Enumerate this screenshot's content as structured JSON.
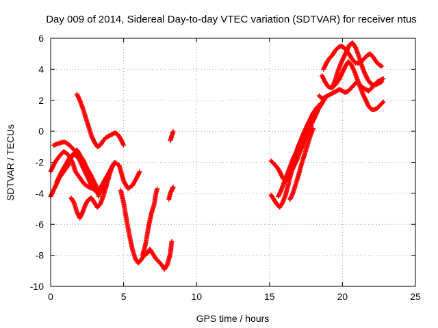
{
  "chart_data": {
    "type": "scatter",
    "title": "Day 009 of 2014, Sidereal Day-to-day VTEC variation (SDTVAR) for receiver ntus",
    "xlabel": "GPS time / hours",
    "ylabel": "SDTVAR / TECUs",
    "xlim": [
      0,
      25
    ],
    "ylim": [
      -10,
      6
    ],
    "xticks": [
      0,
      5,
      10,
      15,
      20,
      25
    ],
    "yticks": [
      -10,
      -8,
      -6,
      -4,
      -2,
      0,
      2,
      4,
      6
    ],
    "grid": true,
    "marker": "plus",
    "color": "#ff0000",
    "series": [
      {
        "x": [
          0.0,
          0.3,
          0.6,
          0.9,
          1.2,
          1.5,
          1.7,
          2.0,
          2.3,
          2.6,
          2.9,
          3.2,
          3.5,
          3.8,
          4.1,
          4.4,
          4.7,
          5.0,
          5.3,
          5.6,
          5.9,
          6.1
        ],
        "y": [
          -2.6,
          -2.0,
          -1.6,
          -1.3,
          -1.5,
          -2.0,
          -2.6,
          -3.0,
          -3.4,
          -3.6,
          -3.7,
          -3.8,
          -3.5,
          -3.0,
          -2.5,
          -2.0,
          -2.2,
          -3.2,
          -3.7,
          -3.5,
          -3.0,
          -2.6
        ]
      },
      {
        "x": [
          0.0,
          0.3,
          0.6,
          0.9,
          1.2,
          1.4,
          1.6,
          1.8,
          2.0
        ],
        "y": [
          -4.2,
          -3.6,
          -3.0,
          -2.6,
          -2.2,
          -1.7,
          -1.4,
          -1.2,
          -1.5
        ]
      },
      {
        "x": [
          0.2,
          0.5,
          0.8,
          1.0,
          1.3,
          1.6,
          1.9,
          2.2,
          2.5,
          2.8,
          3.1,
          3.3
        ],
        "y": [
          -0.9,
          -0.8,
          -0.7,
          -0.7,
          -0.9,
          -1.2,
          -1.4,
          -1.8,
          -2.4,
          -2.9,
          -3.5,
          -4.2
        ]
      },
      {
        "x": [
          0.4,
          0.7,
          1.0,
          1.3,
          1.6,
          1.9,
          2.2,
          2.5,
          2.8,
          3.1,
          3.4,
          3.7,
          4.0,
          4.3
        ],
        "y": [
          -3.3,
          -2.7,
          -2.2,
          -1.7,
          -1.5,
          -1.7,
          -2.3,
          -2.9,
          -3.5,
          -3.9,
          -4.0,
          -3.4,
          -2.7,
          -2.1
        ]
      },
      {
        "x": [
          1.8,
          2.0,
          2.2,
          2.4,
          2.6,
          2.8,
          3.0,
          3.2,
          3.4,
          3.6,
          3.8,
          4.0,
          4.2,
          4.4,
          4.6,
          4.8,
          5.0
        ],
        "y": [
          2.4,
          2.0,
          1.5,
          0.9,
          0.3,
          -0.3,
          -0.7,
          -1.0,
          -0.9,
          -0.6,
          -0.4,
          -0.3,
          -0.2,
          -0.1,
          -0.2,
          -0.5,
          -0.9
        ]
      },
      {
        "x": [
          1.4,
          1.6,
          1.8,
          2.0,
          2.2,
          2.4,
          2.6,
          2.8,
          3.0,
          3.2,
          3.4,
          3.6,
          3.8,
          4.0,
          4.2
        ],
        "y": [
          -4.3,
          -4.6,
          -5.2,
          -5.6,
          -5.2,
          -4.7,
          -4.4,
          -4.3,
          -4.6,
          -4.9,
          -4.7,
          -4.2,
          -3.6,
          -2.9,
          -2.3
        ]
      },
      {
        "x": [
          4.8,
          5.0,
          5.2,
          5.4,
          5.6,
          5.8,
          6.0,
          6.2,
          6.4,
          6.6,
          6.8,
          7.0,
          7.2,
          7.4,
          7.6,
          7.8,
          8.0,
          8.2,
          8.3
        ],
        "y": [
          -3.8,
          -4.6,
          -5.7,
          -6.7,
          -7.6,
          -8.2,
          -8.5,
          -8.3,
          -8.0,
          -7.9,
          -7.6,
          -7.9,
          -8.2,
          -8.4,
          -8.6,
          -8.9,
          -8.6,
          -7.9,
          -7.1
        ]
      },
      {
        "x": [
          6.3,
          6.5,
          6.7,
          6.9,
          7.1,
          7.2,
          7.3
        ],
        "y": [
          -8.0,
          -7.3,
          -6.2,
          -5.3,
          -4.7,
          -4.1,
          -3.7
        ]
      },
      {
        "x": [
          8.1,
          8.2,
          8.3,
          8.4
        ],
        "y": [
          -4.4,
          -4.0,
          -3.8,
          -3.6
        ]
      },
      {
        "x": [
          8.2,
          8.3,
          8.4
        ],
        "y": [
          -0.6,
          -0.3,
          0.0
        ]
      },
      {
        "x": [
          15.1,
          15.3,
          15.5,
          15.7,
          15.9,
          16.1,
          16.3,
          16.5,
          16.7,
          16.9,
          17.1,
          17.3,
          17.5,
          17.7,
          17.9,
          18.1,
          18.3
        ],
        "y": [
          -4.1,
          -4.4,
          -4.7,
          -4.9,
          -4.6,
          -4.1,
          -3.4,
          -2.6,
          -1.9,
          -1.2,
          -0.7,
          -0.2,
          0.2,
          0.6,
          0.9,
          1.3,
          1.6
        ]
      },
      {
        "x": [
          15.1,
          15.3,
          15.5,
          15.7,
          15.9,
          16.1,
          16.3,
          16.5,
          16.7,
          16.9,
          17.1,
          17.3,
          17.5,
          17.7,
          17.9,
          18.1,
          18.3,
          18.5
        ],
        "y": [
          -1.9,
          -2.1,
          -2.3,
          -2.6,
          -3.0,
          -3.2,
          -3.0,
          -2.6,
          -2.2,
          -1.8,
          -1.3,
          -0.9,
          -0.4,
          0.1,
          0.5,
          0.9,
          1.3,
          1.8
        ]
      },
      {
        "x": [
          15.6,
          15.8,
          16.0,
          16.2,
          16.4,
          16.6,
          16.8,
          17.0,
          17.2,
          17.4,
          17.6,
          17.8,
          18.0,
          18.2
        ],
        "y": [
          -4.2,
          -3.8,
          -3.3,
          -2.8,
          -2.3,
          -1.8,
          -1.4,
          -0.9,
          -0.5,
          -0.1,
          0.3,
          0.7,
          1.1,
          1.5
        ]
      },
      {
        "x": [
          16.4,
          16.6,
          16.8,
          17.0,
          17.2,
          17.4,
          17.6,
          17.8,
          18.0
        ],
        "y": [
          -4.4,
          -4.0,
          -3.4,
          -2.8,
          -2.1,
          -1.5,
          -0.9,
          -0.3,
          0.2
        ]
      },
      {
        "x": [
          17.2,
          17.4,
          17.6,
          17.8,
          18.0,
          18.2,
          18.4,
          18.6,
          18.8
        ],
        "y": [
          -0.5,
          -0.1,
          0.4,
          0.8,
          1.2,
          1.4,
          1.5,
          1.8,
          2.1
        ]
      },
      {
        "x": [
          18.4,
          18.6,
          18.8,
          19.0,
          19.2,
          19.4,
          19.6,
          19.8,
          20.0,
          20.2,
          20.4,
          20.6,
          20.8,
          21.0,
          21.2,
          21.4,
          21.6,
          21.8,
          22.0,
          22.2,
          22.4,
          22.6,
          22.8
        ],
        "y": [
          2.3,
          2.1,
          2.2,
          2.3,
          2.4,
          2.5,
          2.6,
          2.7,
          2.6,
          2.5,
          2.6,
          2.8,
          3.0,
          3.2,
          3.0,
          2.8,
          2.7,
          2.6,
          2.8,
          3.0,
          3.2,
          3.3,
          3.4
        ]
      },
      {
        "x": [
          18.6,
          18.8,
          19.0,
          19.2,
          19.4,
          19.6,
          19.8,
          20.0,
          20.2,
          20.4,
          20.6,
          20.8,
          21.0,
          21.2,
          21.4,
          21.6,
          21.8,
          22.0,
          22.2,
          22.4,
          22.6,
          22.8
        ],
        "y": [
          3.6,
          3.2,
          2.9,
          2.8,
          2.9,
          3.1,
          3.4,
          3.8,
          4.2,
          4.5,
          4.3,
          3.9,
          3.4,
          2.9,
          2.4,
          2.0,
          1.6,
          1.4,
          1.4,
          1.5,
          1.7,
          1.9
        ]
      },
      {
        "x": [
          18.7,
          18.9,
          19.1,
          19.3,
          19.5,
          19.7,
          19.9,
          20.1,
          20.3,
          20.5,
          20.7,
          20.9,
          21.1,
          21.3,
          21.5,
          21.7,
          21.9,
          22.1,
          22.3,
          22.5,
          22.7
        ],
        "y": [
          4.0,
          4.4,
          4.7,
          4.9,
          5.2,
          5.4,
          5.5,
          5.4,
          5.2,
          4.9,
          4.6,
          4.4,
          4.4,
          4.5,
          4.7,
          4.9,
          5.0,
          4.8,
          4.5,
          4.3,
          4.2
        ]
      },
      {
        "x": [
          19.3,
          19.5,
          19.7,
          19.9,
          20.1,
          20.3,
          20.5,
          20.7,
          20.9,
          21.1,
          21.3,
          21.5,
          21.7,
          21.9,
          22.1,
          22.3,
          22.5,
          22.7
        ],
        "y": [
          2.8,
          3.3,
          3.9,
          4.4,
          4.8,
          5.2,
          5.6,
          5.7,
          5.4,
          4.9,
          4.3,
          3.8,
          3.4,
          3.1,
          3.0,
          3.0,
          3.1,
          3.2
        ]
      }
    ]
  }
}
